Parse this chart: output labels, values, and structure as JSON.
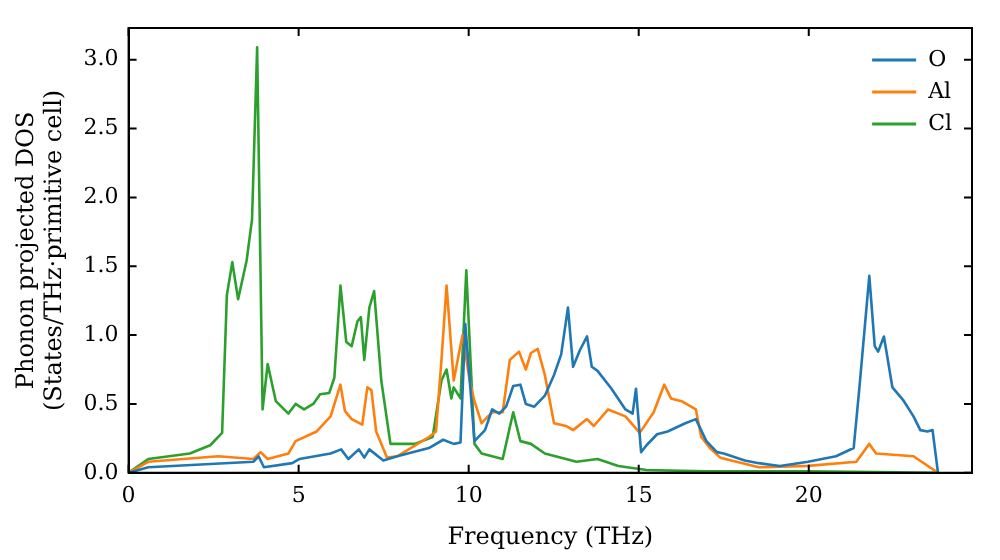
{
  "chart_data": {
    "type": "line",
    "xlabel": "Frequency (THz)",
    "ylabel": "Phonon projected DOS\n(States/THz·primitive cell)",
    "xlim": [
      0,
      24.8
    ],
    "ylim": [
      0,
      3.23
    ],
    "xticks": [
      0,
      5,
      10,
      15,
      20
    ],
    "yticks": [
      {
        "value": 0,
        "label": "0.0"
      },
      0.5,
      {
        "value": 1,
        "label": "1.0"
      },
      1.5,
      {
        "value": 2,
        "label": "2.0"
      },
      2.5,
      {
        "value": 3,
        "label": "3.0"
      }
    ],
    "grid": false,
    "legend": "top right",
    "marker": "none",
    "line_style": "solid",
    "series": [
      {
        "name": "O",
        "color": "#1f77b4",
        "x": [
          0,
          0.58,
          3.67,
          3.82,
          3.98,
          4.81,
          5.02,
          5.94,
          6.25,
          6.46,
          6.77,
          6.93,
          7.08,
          7.49,
          7.9,
          8.83,
          9.25,
          9.56,
          9.76,
          9.9,
          10.01,
          10.17,
          10.48,
          10.69,
          10.9,
          11.1,
          11.31,
          11.52,
          11.68,
          11.93,
          12.24,
          12.51,
          12.72,
          12.92,
          13.07,
          13.27,
          13.48,
          13.62,
          13.79,
          14.2,
          14.61,
          14.82,
          14.92,
          15.07,
          15.23,
          15.54,
          15.85,
          16.37,
          16.68,
          16.99,
          17.3,
          17.5,
          18.12,
          18.53,
          19.15,
          19.98,
          20.8,
          21.32,
          21.49,
          21.78,
          21.94,
          22.04,
          22.21,
          22.46,
          22.77,
          23.08,
          23.28,
          23.49,
          23.64,
          23.8
        ],
        "values": [
          0,
          0.04,
          0.08,
          0.12,
          0.04,
          0.07,
          0.1,
          0.14,
          0.17,
          0.1,
          0.17,
          0.11,
          0.17,
          0.09,
          0.12,
          0.18,
          0.24,
          0.21,
          0.22,
          1.08,
          0.74,
          0.23,
          0.31,
          0.46,
          0.43,
          0.48,
          0.63,
          0.64,
          0.5,
          0.48,
          0.56,
          0.71,
          0.86,
          1.2,
          0.77,
          0.89,
          0.99,
          0.77,
          0.74,
          0.61,
          0.46,
          0.43,
          0.61,
          0.15,
          0.2,
          0.28,
          0.3,
          0.36,
          0.39,
          0.23,
          0.15,
          0.14,
          0.09,
          0.07,
          0.05,
          0.08,
          0.12,
          0.18,
          0.62,
          1.43,
          0.92,
          0.88,
          0.99,
          0.62,
          0.53,
          0.41,
          0.31,
          0.3,
          0.31,
          0
        ]
      },
      {
        "name": "Al",
        "color": "#ff7f0e",
        "x": [
          0,
          0.58,
          2.64,
          3.67,
          3.88,
          4.09,
          4.7,
          4.91,
          5.53,
          5.94,
          6.23,
          6.36,
          6.56,
          6.87,
          7.02,
          7.14,
          7.28,
          7.6,
          7.9,
          8.83,
          9.04,
          9.2,
          9.35,
          9.56,
          9.82,
          10.03,
          10.17,
          10.38,
          10.69,
          11.0,
          11.21,
          11.48,
          11.68,
          11.83,
          12.03,
          12.24,
          12.51,
          12.86,
          13.07,
          13.48,
          13.68,
          14.1,
          14.61,
          15.03,
          15.44,
          15.75,
          15.95,
          16.26,
          16.68,
          16.84,
          17.09,
          17.4,
          18.53,
          19.98,
          21.4,
          21.78,
          21.98,
          23.08,
          23.8
        ],
        "values": [
          0,
          0.08,
          0.12,
          0.1,
          0.15,
          0.1,
          0.14,
          0.23,
          0.3,
          0.41,
          0.64,
          0.45,
          0.39,
          0.35,
          0.62,
          0.6,
          0.3,
          0.11,
          0.12,
          0.26,
          0.3,
          0.82,
          1.36,
          0.67,
          1.0,
          0.67,
          0.52,
          0.36,
          0.44,
          0.44,
          0.82,
          0.88,
          0.75,
          0.87,
          0.9,
          0.71,
          0.36,
          0.34,
          0.31,
          0.39,
          0.34,
          0.46,
          0.41,
          0.29,
          0.44,
          0.64,
          0.54,
          0.52,
          0.46,
          0.26,
          0.18,
          0.11,
          0.04,
          0.05,
          0.08,
          0.21,
          0.14,
          0.12,
          0
        ]
      },
      {
        "name": "Cl",
        "color": "#2ca02c",
        "x": [
          0,
          0.58,
          1.8,
          2.4,
          2.75,
          2.89,
          3.05,
          3.22,
          3.47,
          3.63,
          3.78,
          3.94,
          4.09,
          4.33,
          4.7,
          4.91,
          5.16,
          5.43,
          5.63,
          5.9,
          6.05,
          6.23,
          6.4,
          6.56,
          6.73,
          6.83,
          6.93,
          7.08,
          7.22,
          7.43,
          7.7,
          8.42,
          8.94,
          9.2,
          9.35,
          9.49,
          9.56,
          9.76,
          9.93,
          10.17,
          10.38,
          11.0,
          11.31,
          11.52,
          11.83,
          12.24,
          13.17,
          13.79,
          14.4,
          15.23,
          17.0,
          20.0,
          23.8
        ],
        "values": [
          0,
          0.1,
          0.14,
          0.2,
          0.29,
          1.29,
          1.53,
          1.26,
          1.54,
          1.84,
          3.09,
          0.46,
          0.79,
          0.52,
          0.43,
          0.5,
          0.46,
          0.5,
          0.57,
          0.58,
          0.69,
          1.36,
          0.95,
          0.92,
          1.1,
          1.13,
          0.82,
          1.2,
          1.32,
          0.67,
          0.21,
          0.21,
          0.26,
          0.67,
          0.75,
          0.54,
          0.62,
          0.54,
          1.47,
          0.21,
          0.14,
          0.1,
          0.44,
          0.23,
          0.21,
          0.14,
          0.08,
          0.1,
          0.05,
          0.02,
          0.01,
          0.01,
          0
        ]
      }
    ]
  }
}
